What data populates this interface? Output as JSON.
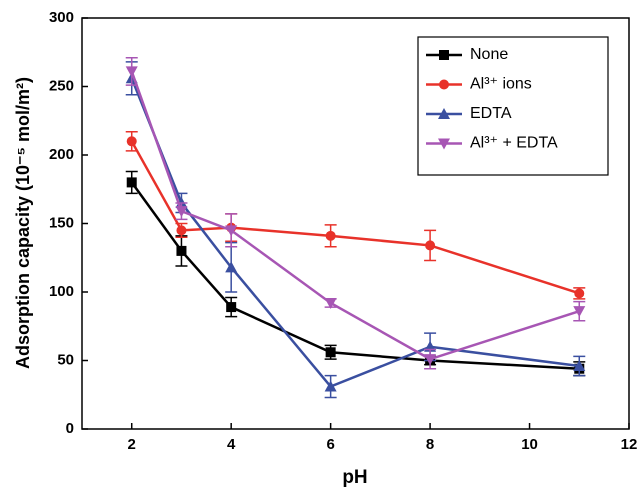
{
  "chart_data": {
    "type": "line",
    "xlabel": "pH",
    "ylabel": "Adsorption capacity (10⁻⁵ mol/m²)",
    "xlim": [
      1,
      12
    ],
    "ylim": [
      0,
      300
    ],
    "xticks": [
      2,
      4,
      6,
      8,
      10,
      12
    ],
    "yticks": [
      0,
      50,
      100,
      150,
      200,
      250,
      300
    ],
    "legend": "upper right",
    "x": [
      2,
      3,
      4,
      6,
      8,
      11
    ],
    "series": [
      {
        "name": "None",
        "color": "#000000",
        "marker": "square",
        "values": [
          180,
          130,
          89,
          56,
          50,
          44
        ],
        "errors": [
          8,
          11,
          7,
          5,
          3,
          5
        ]
      },
      {
        "name": "Al³⁺ ions",
        "color": "#e8322a",
        "marker": "circle",
        "values": [
          210,
          145,
          147,
          141,
          134,
          99
        ],
        "errors": [
          7,
          5,
          10,
          8,
          11,
          4
        ]
      },
      {
        "name": "EDTA",
        "color": "#3a4fa0",
        "marker": "triangle-up",
        "values": [
          256,
          165,
          118,
          31,
          60,
          46
        ],
        "errors": [
          12,
          7,
          18,
          8,
          10,
          7
        ]
      },
      {
        "name": "Al³⁺ + EDTA",
        "color": "#a756b4",
        "marker": "triangle-down",
        "values": [
          261,
          159,
          145,
          92,
          51,
          86
        ],
        "errors": [
          10,
          6,
          12,
          3,
          7,
          7
        ]
      }
    ]
  }
}
